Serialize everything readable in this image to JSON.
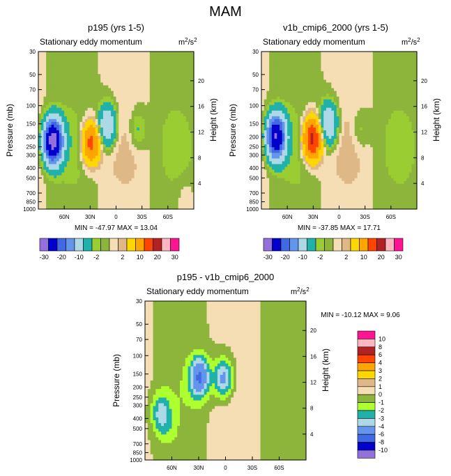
{
  "page_title": "MAM",
  "chart_data": [
    {
      "type": "heatmap",
      "title": "p195 (yrs 1-5)",
      "subtitle": "Stationary eddy momentum",
      "units": "m²/s²",
      "units_base": "m",
      "units_sup1": "2",
      "units_mid": "/s",
      "units_sup2": "2",
      "xlabel": "",
      "ylabel": "Pressure (mb)",
      "y2label": "Height (km)",
      "x_ticks": [
        {
          "v": 60,
          "label": "60N"
        },
        {
          "v": 30,
          "label": "30N"
        },
        {
          "v": 0,
          "label": "0"
        },
        {
          "v": -30,
          "label": "30S"
        },
        {
          "v": -60,
          "label": "60S"
        }
      ],
      "x_range": [
        90,
        -90
      ],
      "y_ticks": [
        "30",
        "50",
        "70",
        "100",
        "150",
        "200",
        "250",
        "300",
        "400",
        "500",
        "700",
        "850",
        "1000"
      ],
      "y_range_mb": [
        30,
        1000
      ],
      "height_ticks": [
        "4",
        "8",
        "12",
        "16",
        "20"
      ],
      "min_label": "MIN =",
      "min_value": "-47.97",
      "max_label": "MAX =",
      "max_value": "13.04",
      "features": [
        {
          "lat": 73,
          "p": 220,
          "value": -35
        },
        {
          "lat": 29,
          "p": 230,
          "value": 12
        },
        {
          "lat": 10,
          "p": 155,
          "value": -10
        },
        {
          "lat": -25,
          "p": 170,
          "value": -3
        },
        {
          "lat": -80,
          "p": 750,
          "value": 1
        }
      ]
    },
    {
      "type": "heatmap",
      "title": "v1b_cmip6_2000 (yrs 1-5)",
      "subtitle": "Stationary eddy momentum",
      "units": "m²/s²",
      "units_base": "m",
      "units_sup1": "2",
      "units_mid": "/s",
      "units_sup2": "2",
      "xlabel": "",
      "ylabel": "Pressure (mb)",
      "y2label": "Height (km)",
      "x_ticks": [
        {
          "v": 60,
          "label": "60N"
        },
        {
          "v": 30,
          "label": "30N"
        },
        {
          "v": 0,
          "label": "0"
        },
        {
          "v": -30,
          "label": "30S"
        },
        {
          "v": -60,
          "label": "60S"
        }
      ],
      "x_range": [
        90,
        -90
      ],
      "y_ticks": [
        "30",
        "50",
        "70",
        "100",
        "150",
        "200",
        "250",
        "300",
        "400",
        "500",
        "700",
        "850",
        "1000"
      ],
      "y_range_mb": [
        30,
        1000
      ],
      "height_ticks": [
        "4",
        "8",
        "12",
        "16",
        "20"
      ],
      "min_label": "MIN =",
      "min_value": "-37.85",
      "max_label": "MAX =",
      "max_value": "17.71",
      "features": [
        {
          "lat": 73,
          "p": 200,
          "value": -30
        },
        {
          "lat": 31,
          "p": 210,
          "value": 17
        },
        {
          "lat": 12,
          "p": 150,
          "value": -10
        },
        {
          "lat": -25,
          "p": 170,
          "value": -2
        }
      ]
    },
    {
      "type": "heatmap",
      "title": "p195 - v1b_cmip6_2000",
      "subtitle": "Stationary eddy momentum",
      "units": "m²/s²",
      "units_base": "m",
      "units_sup1": "2",
      "units_mid": "/s",
      "units_sup2": "2",
      "xlabel": "",
      "ylabel": "Pressure (mb)",
      "y2label": "Height (km)",
      "x_ticks": [
        {
          "v": 60,
          "label": "60N"
        },
        {
          "v": 30,
          "label": "30N"
        },
        {
          "v": 0,
          "label": "0"
        },
        {
          "v": -30,
          "label": "30S"
        },
        {
          "v": -60,
          "label": "60S"
        }
      ],
      "x_range": [
        90,
        -90
      ],
      "y_ticks": [
        "30",
        "50",
        "70",
        "100",
        "150",
        "200",
        "250",
        "300",
        "400",
        "500",
        "700",
        "850",
        "1000"
      ],
      "y_range_mb": [
        30,
        1000
      ],
      "height_ticks": [
        "4",
        "8",
        "12",
        "16",
        "20"
      ],
      "min_label": "MIN =",
      "min_value": "-10.12",
      "max_label": "MAX =",
      "max_value": "9.06",
      "features": [
        {
          "lat": 73,
          "p": 350,
          "value": -3
        },
        {
          "lat": 29,
          "p": 160,
          "value": -6
        },
        {
          "lat": 2,
          "p": 165,
          "value": -5
        },
        {
          "lat": 65,
          "p": 500,
          "value": -1
        }
      ]
    }
  ],
  "colorbar_full": {
    "colors": [
      "#9370DB",
      "#0000CD",
      "#4169E1",
      "#6495ED",
      "#ADD8E6",
      "#20B2AA",
      "#9ACD32",
      "#8DB53C",
      "#F5DEB3",
      "#DEB887",
      "#FFD700",
      "#FFA500",
      "#FF4500",
      "#B22222",
      "#FFB6C1",
      "#FF1493"
    ],
    "labels": [
      "-30",
      "-20",
      "-10",
      "-2",
      "2",
      "10",
      "20",
      "30"
    ],
    "levels": [
      -30,
      -25,
      -20,
      -15,
      -10,
      -5,
      -2,
      -1,
      1,
      2,
      5,
      10,
      15,
      20,
      25,
      30
    ]
  },
  "colorbar_diff": {
    "colors": [
      "#FF1493",
      "#FFB6C1",
      "#B22222",
      "#FF4500",
      "#FFA500",
      "#FFD700",
      "#DEB887",
      "#F5DEB3",
      "#8DB53C",
      "#ADFF2F",
      "#20B2AA",
      "#ADD8E6",
      "#6495ED",
      "#4169E1",
      "#0000CD",
      "#9370DB"
    ],
    "labels": [
      "10",
      "8",
      "6",
      "4",
      "3",
      "2",
      "1",
      "0",
      "-1",
      "-2",
      "-3",
      "-4",
      "-6",
      "-8",
      "-10"
    ]
  }
}
